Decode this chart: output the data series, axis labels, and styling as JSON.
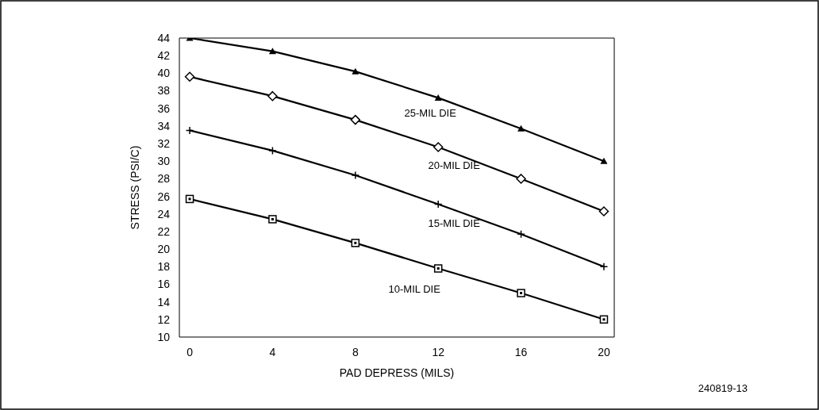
{
  "chart_data": {
    "type": "line",
    "xlabel": "PAD DEPRESS (MILS)",
    "ylabel": "STRESS (PSI/C)",
    "x": [
      0,
      4,
      8,
      12,
      16,
      20
    ],
    "xlim": [
      -0.5,
      20.5
    ],
    "xticks": [
      0,
      4,
      8,
      12,
      16,
      20
    ],
    "ylim": [
      10,
      44
    ],
    "yticks": [
      10,
      12,
      14,
      16,
      18,
      20,
      22,
      24,
      26,
      28,
      30,
      32,
      34,
      36,
      38,
      40,
      42,
      44
    ],
    "grid": false,
    "legend": false,
    "line_style": "solid",
    "series": [
      {
        "name": "25-MIL DIE",
        "color": "#000000",
        "marker": "triangle",
        "values": [
          44.0,
          42.5,
          40.2,
          37.2,
          33.7,
          30.0
        ]
      },
      {
        "name": "20-MIL DIE",
        "color": "#000000",
        "marker": "diamond",
        "values": [
          39.6,
          37.4,
          34.7,
          31.6,
          28.0,
          24.3
        ]
      },
      {
        "name": "15-MIL DIE",
        "color": "#000000",
        "marker": "cross",
        "values": [
          33.5,
          31.2,
          28.4,
          25.1,
          21.7,
          18.0
        ]
      },
      {
        "name": "10-MIL DIE",
        "color": "#000000",
        "marker": "square",
        "values": [
          25.7,
          23.4,
          20.7,
          17.8,
          15.0,
          12.0
        ]
      }
    ],
    "annotations": [
      "240819-13"
    ]
  }
}
